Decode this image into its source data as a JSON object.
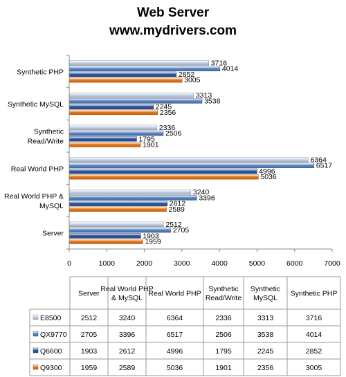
{
  "chart_data": {
    "type": "bar",
    "orientation": "horizontal",
    "title": [
      "Web Server",
      "www.mydrivers.com"
    ],
    "categories": [
      "Synthetic PHP",
      "Synthetic MySQL",
      "Synthetic Read/Write",
      "Real World PHP",
      "Real World PHP & MySQL",
      "Server"
    ],
    "category_display": [
      [
        "Synthetic PHP"
      ],
      [
        "Synthetic MySQL"
      ],
      [
        "Synthetic",
        "Read/Write"
      ],
      [
        "Real World PHP"
      ],
      [
        "Real World PHP &",
        "MySQL"
      ],
      [
        "Server"
      ]
    ],
    "series": [
      {
        "name": "E8500",
        "color": "#c6d3e6",
        "values": [
          3716,
          3313,
          2336,
          6364,
          3240,
          2512
        ]
      },
      {
        "name": "QX9770",
        "color": "#5b86c6",
        "values": [
          4014,
          3538,
          2506,
          6517,
          3396,
          2705
        ]
      },
      {
        "name": "Q6600",
        "color": "#2d5aa3",
        "values": [
          2852,
          2245,
          1795,
          4996,
          2612,
          1903
        ]
      },
      {
        "name": "Q9300",
        "color": "#ee7a1c",
        "values": [
          3005,
          2356,
          1901,
          5036,
          2589,
          1959
        ]
      }
    ],
    "xlim": [
      0,
      7000
    ],
    "xticks": [
      0,
      1000,
      2000,
      3000,
      4000,
      5000,
      6000,
      7000
    ],
    "grid": false,
    "legend": "data-table",
    "data_table": {
      "columns": [
        "Server",
        "Real World PHP & MySQL",
        "Real World PHP",
        "Synthetic Read/Write",
        "Synthetic MySQL",
        "Synthetic PHP"
      ],
      "column_display": [
        [
          "Server"
        ],
        [
          "Real World PHP",
          "& MySQL"
        ],
        [
          "Real World PHP"
        ],
        [
          "Synthetic",
          "Read/Write"
        ],
        [
          "Synthetic",
          "MySQL"
        ],
        [
          "Synthetic PHP"
        ]
      ]
    }
  }
}
